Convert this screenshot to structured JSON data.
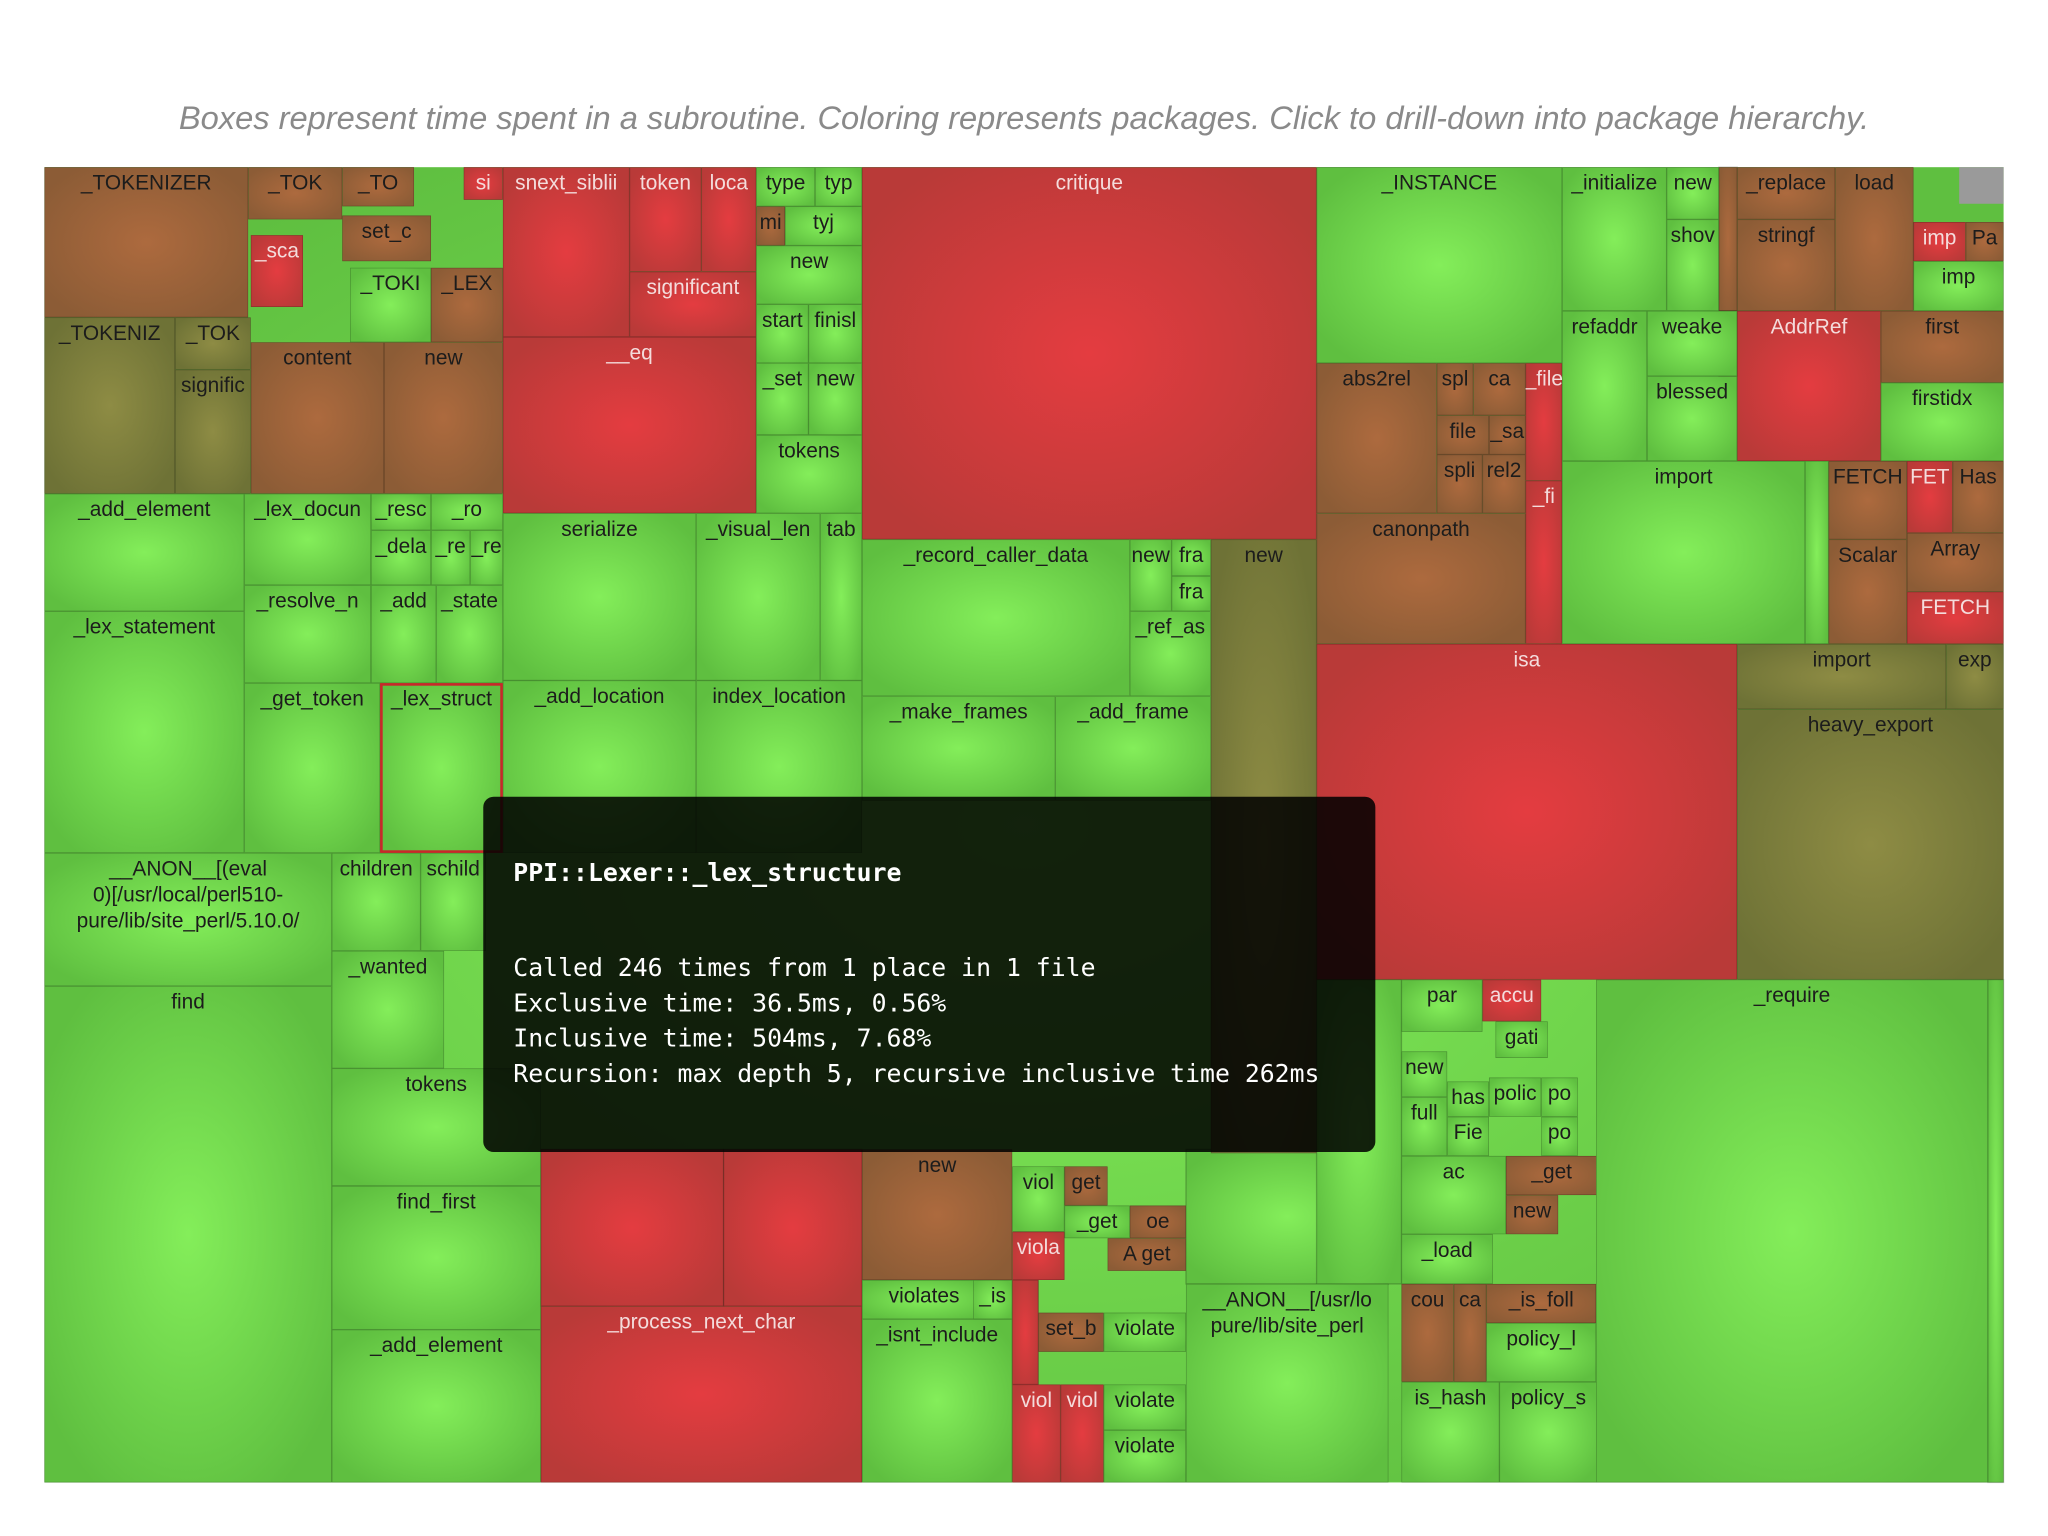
{
  "caption": "Boxes represent time spent in a subroutine. Coloring represents packages. Click to drill-down into package hierarchy.",
  "treemap": {
    "labels": [
      "_TOKENIZER",
      "_TOK",
      "_TO",
      "si",
      "_sca",
      "set_c",
      "_TOKI",
      "_LEX",
      "_TOKENIZ",
      "_TOK",
      "signific",
      "content",
      "new",
      "snext_siblii",
      "token",
      "loca",
      "significant",
      "__eq",
      "type",
      "typ",
      "mi",
      "tyj",
      "new",
      "start",
      "finisl",
      "_set",
      "new",
      "tokens",
      "critique",
      "_INSTANCE",
      "_initialize",
      "new",
      "shov",
      "_replace",
      "stringf",
      "load",
      "imp",
      "Pa",
      "imp",
      "refaddr",
      "weake",
      "blessed",
      "AddrRef",
      "first",
      "firstidx",
      "abs2rel",
      "spl",
      "ca",
      "file",
      "_sa",
      "spli",
      "rel2",
      "_file",
      "_fi",
      "canonpath",
      "import",
      "FETCH",
      "Scalar",
      "FET",
      "Has",
      "Array",
      "FETCH",
      "isa",
      "import",
      "exp",
      "heavy_export",
      "_add_element",
      "_lex_statement",
      "_lex_docun",
      "_resc",
      "_ro",
      "_dela",
      "_re",
      "_re",
      "_resolve_n",
      "_add",
      "_state",
      "_get_token",
      "_lex_struct",
      "serialize",
      "_visual_len",
      "tab",
      "_add_location",
      "index_location",
      "_record_caller_data",
      "new",
      "fra",
      "fra",
      "_ref_as",
      "new",
      "_make_frames",
      "_add_frame",
      [
        "__ANON__[(eval",
        "0)[/usr/local/perl510-",
        "pure/lib/site_perl/5.10.0/"
      ],
      "children",
      "schild",
      "_wanted",
      "find",
      "tokens",
      "find_first",
      "_add_element",
      "_process_next_char",
      "new",
      "viol",
      "get",
      "_get",
      "oe",
      "A get",
      "viola",
      "violates",
      "_is",
      "_isnt_include",
      "set_b",
      "violate",
      "viol",
      "viol",
      "violate",
      "violate",
      [
        "__ANON__[/usr/lo",
        "pure/lib/site_perl"
      ],
      "par",
      "accu",
      "gati",
      "new",
      "has",
      "polic",
      "full",
      "Fie",
      "po",
      "po",
      "ac",
      "_get",
      "new",
      "_load",
      "cou",
      "ca",
      "_is_foll",
      "policy_l",
      "is_hash",
      "policy_s",
      "_require"
    ]
  },
  "tooltip": {
    "title": "PPI::Lexer::_lex_structure",
    "lines": [
      "Called 246 times from 1 place in 1 file",
      "Exclusive time: 36.5ms, 0.56%",
      "Inclusive time: 504ms, 7.68%",
      "Recursion: max depth 5, recursive inclusive time 262ms"
    ]
  }
}
